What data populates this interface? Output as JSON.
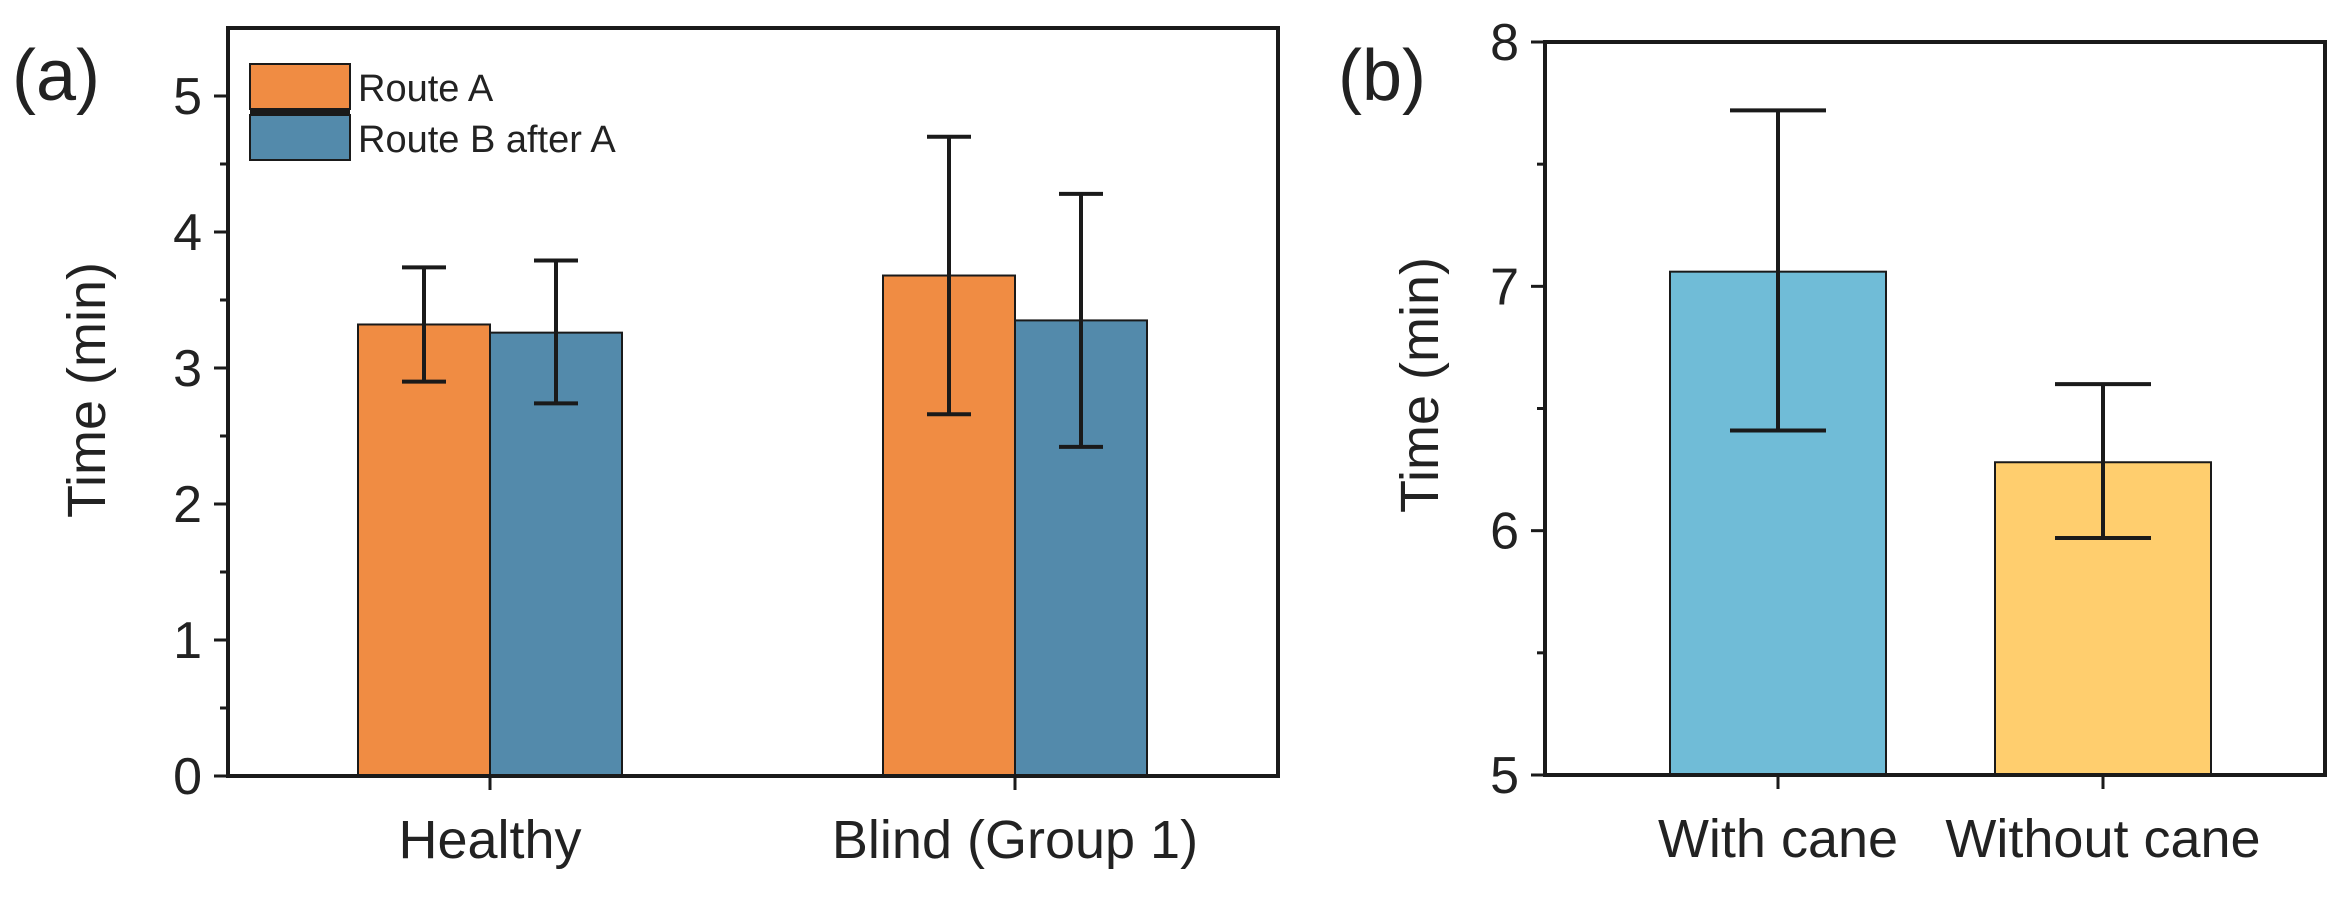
{
  "chart_data": [
    {
      "panel_label": "(a)",
      "type": "bar",
      "categories": [
        "Healthy",
        "Blind (Group 1)"
      ],
      "series": [
        {
          "name": "Route A",
          "color": "#F08C43",
          "values": [
            3.32,
            3.68
          ],
          "err_low": [
            2.9,
            2.66
          ],
          "err_high": [
            3.74,
            4.7
          ]
        },
        {
          "name": "Route B after A",
          "color": "#538AAB",
          "values": [
            3.26,
            3.35
          ],
          "err_low": [
            2.74,
            2.42
          ],
          "err_high": [
            3.79,
            4.28
          ]
        }
      ],
      "ylabel": "Time (min)",
      "xlabel": "",
      "ylim": [
        0,
        5.5
      ],
      "yticks": [
        "0",
        "1",
        "2",
        "3",
        "4",
        "5"
      ],
      "legend_position": "top-left"
    },
    {
      "panel_label": "(b)",
      "type": "bar",
      "categories": [
        "With cane",
        "Without cane"
      ],
      "colors": [
        "#70BCD7",
        "#FFCE6E"
      ],
      "values": [
        7.06,
        6.28
      ],
      "err_low": [
        6.41,
        5.97
      ],
      "err_high": [
        7.72,
        6.6
      ],
      "ylabel": "Time (min)",
      "xlabel": "",
      "ylim": [
        5,
        8
      ],
      "yticks": [
        "5",
        "6",
        "7",
        "8"
      ]
    }
  ]
}
